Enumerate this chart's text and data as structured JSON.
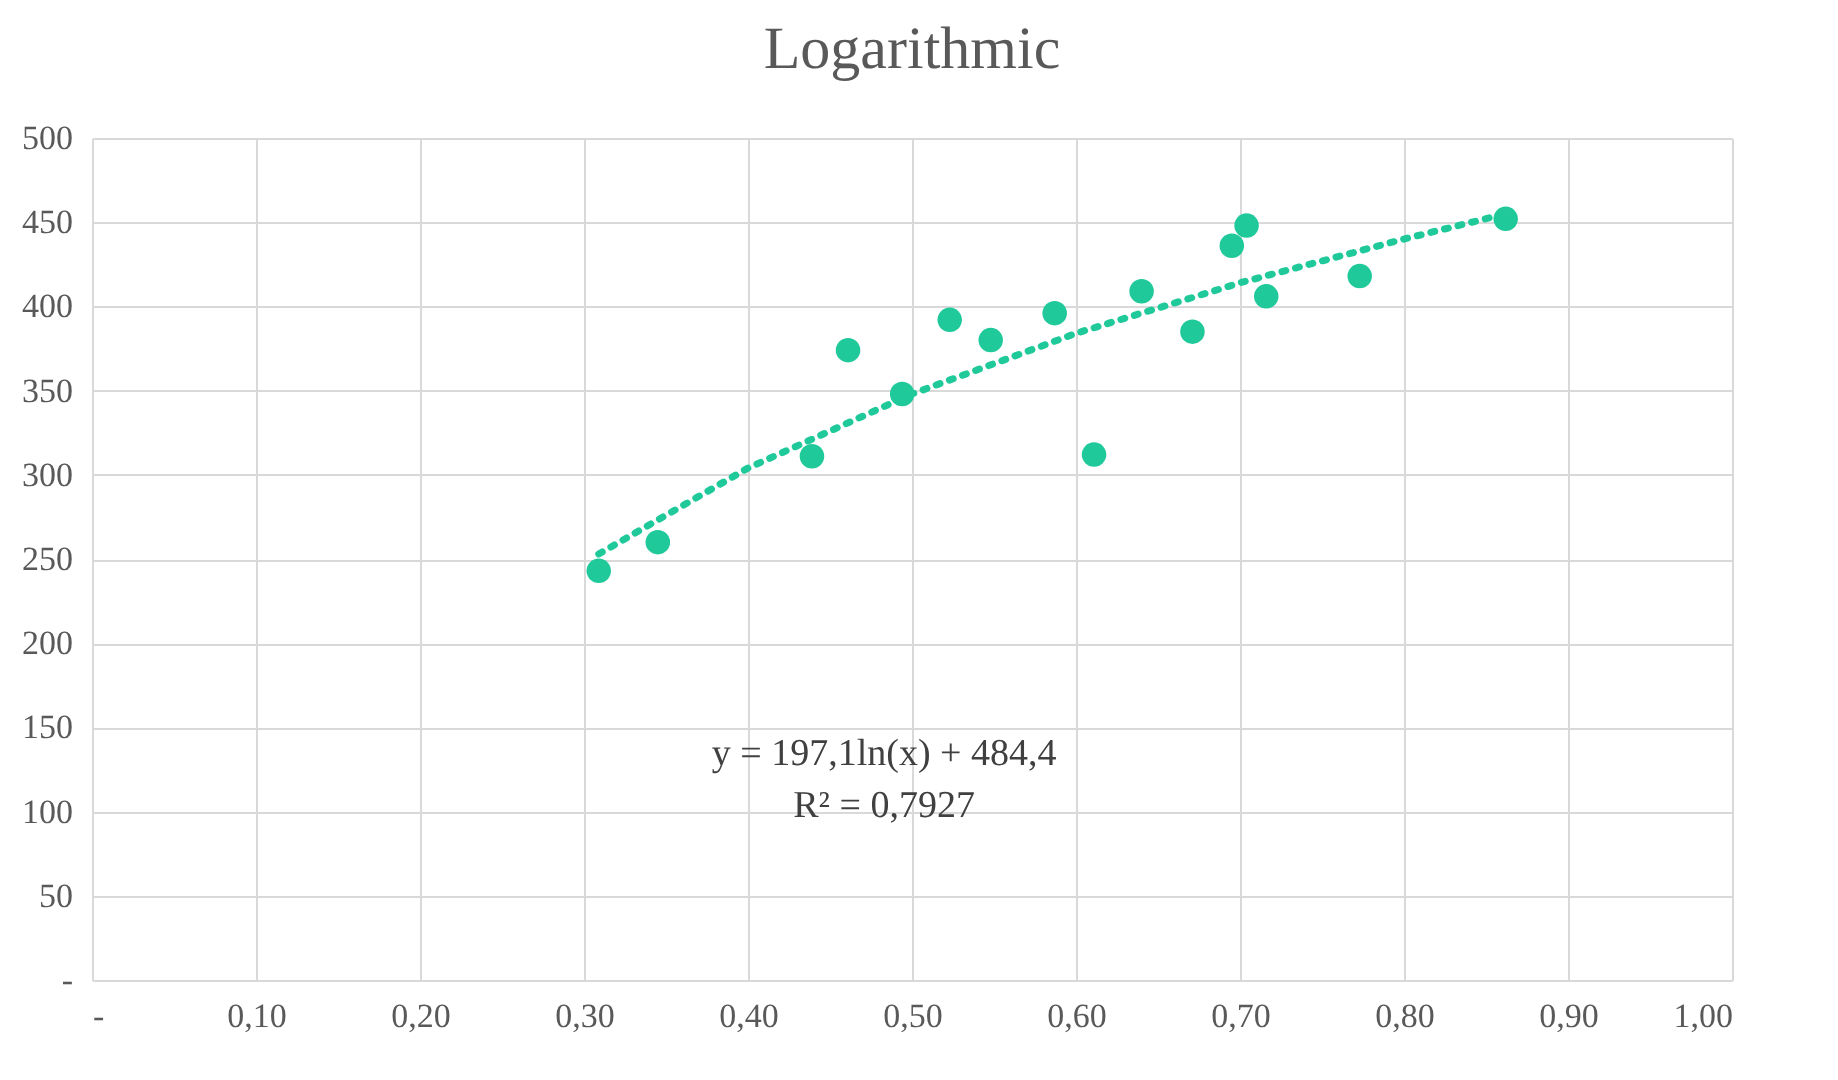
{
  "chart_data": {
    "type": "scatter",
    "title": "Logarithmic",
    "series": [
      {
        "color": "#1fc99a",
        "x": [
          0.309,
          0.345,
          0.439,
          0.461,
          0.494,
          0.523,
          0.548,
          0.587,
          0.611,
          0.64,
          0.671,
          0.695,
          0.704,
          0.716,
          0.773,
          0.862
        ],
        "values": [
          243,
          260,
          311,
          374,
          348,
          392,
          380,
          396,
          312,
          409,
          385,
          436,
          448,
          406,
          418,
          452
        ]
      },
      {
        "type": "line",
        "color": "#1fc99a",
        "line_style": "dotted",
        "marker": "none",
        "x": [
          0.309,
          0.4,
          0.5,
          0.6,
          0.7,
          0.8,
          0.862
        ],
        "values": [
          253,
          304,
          348,
          384,
          414,
          440,
          455
        ]
      }
    ],
    "xlim": [
      0,
      1
    ],
    "xticks": [
      {
        "value": 0,
        "label": "-"
      },
      {
        "value": 0.1,
        "label": "0,10"
      },
      {
        "value": 0.2,
        "label": "0,20"
      },
      {
        "value": 0.3,
        "label": "0,30"
      },
      {
        "value": 0.4,
        "label": "0,40"
      },
      {
        "value": 0.5,
        "label": "0,50"
      },
      {
        "value": 0.6,
        "label": "0,60"
      },
      {
        "value": 0.7,
        "label": "0,70"
      },
      {
        "value": 0.8,
        "label": "0,80"
      },
      {
        "value": 0.9,
        "label": "0,90"
      },
      {
        "value": 1,
        "label": "1,00"
      }
    ],
    "ylim": [
      0,
      500
    ],
    "yticks": [
      {
        "value": 0,
        "label": "-"
      },
      50,
      100,
      150,
      200,
      250,
      300,
      350,
      400,
      450,
      500
    ],
    "grid": true,
    "marker": "circle",
    "annotations": [
      "y = 197,1ln(x) + 484,4",
      "R² = 0,7927"
    ]
  }
}
